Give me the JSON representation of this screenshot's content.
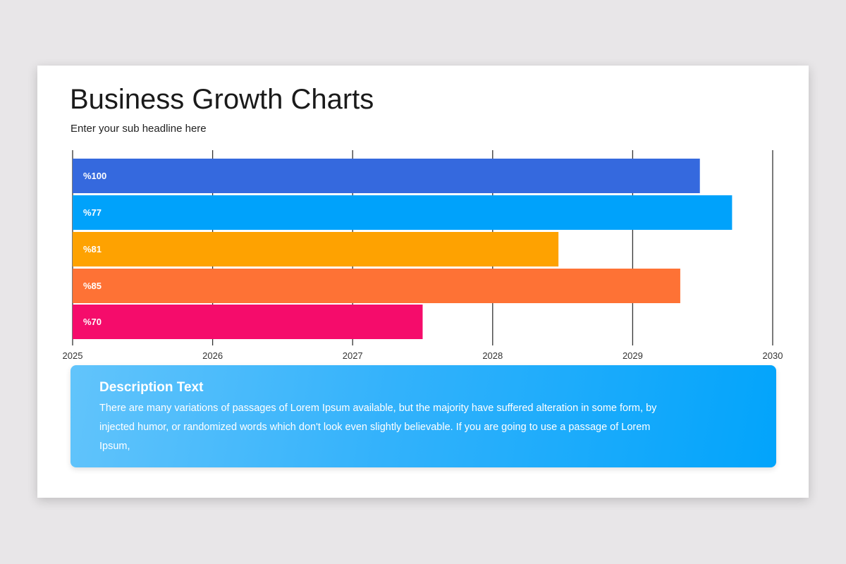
{
  "title": "Business Growth Charts",
  "subtitle": "Enter your sub headline here",
  "chart_data": {
    "type": "bar",
    "orientation": "horizontal",
    "x_ticks": [
      "2025",
      "2026",
      "2027",
      "2028",
      "2029",
      "2030"
    ],
    "xlim": [
      2025,
      2030
    ],
    "grid": true,
    "bars": [
      {
        "label": "%100",
        "end": 2029.48,
        "color": "#3569de"
      },
      {
        "label": "%77",
        "end": 2029.71,
        "color": "#00a2fb"
      },
      {
        "label": "%81",
        "end": 2028.47,
        "color": "#fea201"
      },
      {
        "label": "%85",
        "end": 2029.34,
        "color": "#fe7235"
      },
      {
        "label": "%70",
        "end": 2027.5,
        "color": "#f50c6b"
      }
    ]
  },
  "description": {
    "heading": "Description Text",
    "body": "There are many variations of passages of Lorem Ipsum available, but the majority have suffered alteration in some form, by injected humor, or randomized words which don't look even slightly believable. If you are going to use a passage of Lorem Ipsum,"
  }
}
